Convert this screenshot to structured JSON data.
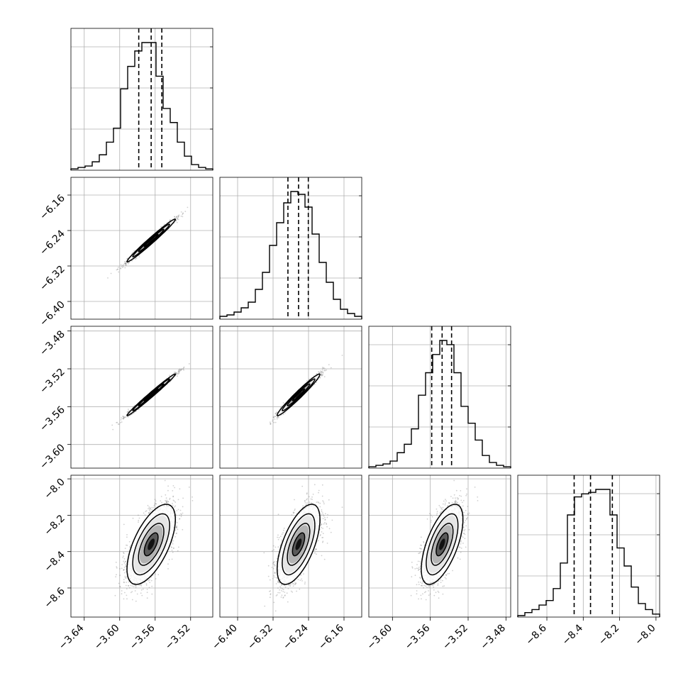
{
  "chart_data": {
    "type": "corner",
    "title": "",
    "parameters": [
      {
        "index": 0,
        "median": -3.5645,
        "q16": -3.5785,
        "q84": -3.5525,
        "range": [
          -3.655,
          -3.495
        ],
        "ticks": [
          -3.64,
          -3.6,
          -3.56,
          -3.52
        ],
        "tick_labels": [
          "−3.64",
          "−3.60",
          "−3.56",
          "−3.52"
        ]
      },
      {
        "index": 1,
        "median": -6.2625,
        "q16": -6.2865,
        "q84": -6.2405,
        "range": [
          -6.44,
          -6.12
        ],
        "ticks": [
          -6.4,
          -6.32,
          -6.24,
          -6.16
        ],
        "tick_labels": [
          "−6.40",
          "−6.32",
          "−6.24",
          "−6.16"
        ]
      },
      {
        "index": 2,
        "median": -3.5475,
        "q16": -3.5585,
        "q84": -3.5375,
        "range": [
          -3.625,
          -3.475
        ],
        "ticks": [
          -3.6,
          -3.56,
          -3.52,
          -3.48
        ],
        "tick_labels": [
          "−3.60",
          "−3.56",
          "−3.52",
          "−3.48"
        ]
      },
      {
        "index": 3,
        "median": -8.36,
        "q16": -8.45,
        "q84": -8.24,
        "range": [
          -8.76,
          -7.98
        ],
        "ticks": [
          -8.6,
          -8.4,
          -8.2,
          -8.0
        ],
        "tick_labels": [
          "−8.6",
          "−8.4",
          "−8.2",
          "−8.0"
        ]
      }
    ],
    "histograms": [
      {
        "param": 0,
        "counts": [
          1,
          2,
          3,
          6,
          11,
          20,
          30,
          58,
          74,
          85,
          91,
          91,
          67,
          44,
          34,
          20,
          10,
          4,
          2,
          1
        ]
      },
      {
        "param": 1,
        "counts": [
          2,
          3,
          5,
          8,
          12,
          21,
          33,
          52,
          68,
          82,
          90,
          88,
          79,
          60,
          40,
          26,
          14,
          7,
          4,
          2
        ]
      },
      {
        "param": 2,
        "counts": [
          1,
          2,
          3,
          5,
          11,
          17,
          28,
          52,
          68,
          81,
          91,
          88,
          68,
          44,
          32,
          20,
          9,
          4,
          2,
          1
        ]
      },
      {
        "param": 3,
        "counts": [
          1,
          3,
          5,
          8,
          11,
          19,
          36,
          68,
          80,
          82,
          83,
          85,
          85,
          68,
          46,
          34,
          20,
          9,
          5,
          2
        ]
      }
    ],
    "correlations": [
      [
        1,
        0.985,
        0.99,
        0.62
      ],
      [
        0.985,
        1,
        0.975,
        0.62
      ],
      [
        0.99,
        0.975,
        1,
        0.62
      ],
      [
        0.62,
        0.62,
        0.62,
        1
      ]
    ],
    "contour_levels_sigma": [
      0.5,
      1.0,
      1.5,
      2.0
    ],
    "grid": true
  }
}
